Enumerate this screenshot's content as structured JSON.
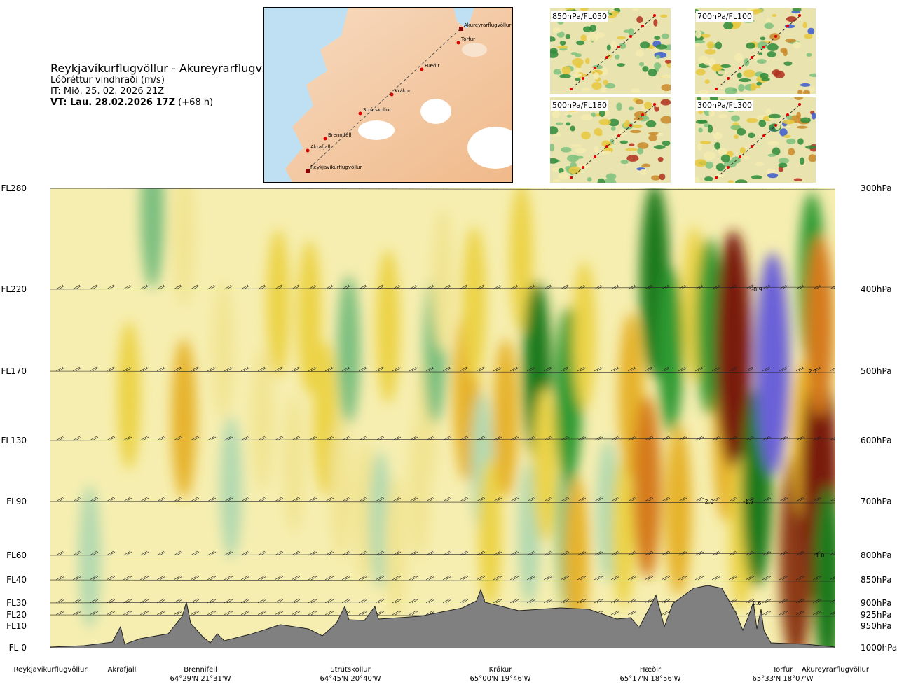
{
  "header": {
    "title": "Reykjavíkurflugvöllur - Akureyrarflugvöllur",
    "subtitle": "Lóðréttur vindhraði (m/s)",
    "it": "IT: Mið. 25. 02. 2026 21Z",
    "vt_bold": "VT: Lau. 28.02.2026 17Z",
    "vt_offset": " (+68 h)"
  },
  "route_map": {
    "points": [
      "Reykjavíkurflugvöllur",
      "Akrafjall",
      "Brennifell",
      "Strútskollur",
      "Krákur",
      "Hæðir",
      "Torfur",
      "Akureyrarflugvöllur"
    ]
  },
  "level_maps": [
    {
      "label": "850hPa/FL050"
    },
    {
      "label": "700hPa/FL100"
    },
    {
      "label": "500hPa/FL180"
    },
    {
      "label": "300hPa/FL300"
    }
  ],
  "axes": {
    "flight_levels": [
      "FL280",
      "FL220",
      "FL170",
      "FL130",
      "FL90",
      "FL60",
      "FL40",
      "FL30",
      "FL20",
      "FL10",
      "FL-0"
    ],
    "pressure_levels": [
      "300hPa",
      "400hPa",
      "500hPa",
      "600hPa",
      "700hPa",
      "800hPa",
      "850hPa",
      "900hPa",
      "925hPa",
      "950hPa",
      "1000hPa"
    ],
    "waypoints": [
      {
        "name": "Reykjavíkurflugvöllur",
        "coord": ""
      },
      {
        "name": "Akrafjall",
        "coord": ""
      },
      {
        "name": "Brennifell",
        "coord": "64°29'N 21°31'W"
      },
      {
        "name": "Strútskollur",
        "coord": "64°45'N 20°40'W"
      },
      {
        "name": "Krákur",
        "coord": "65°00'N 19°46'W"
      },
      {
        "name": "Hæðir",
        "coord": "65°17'N 18°56'W"
      },
      {
        "name": "Torfur",
        "coord": "65°33'N 18°07'W"
      },
      {
        "name": "Akureyrarflugvöllur",
        "coord": ""
      }
    ]
  },
  "chart_data": {
    "type": "heatmap",
    "title": "Reykjavíkurflugvöllur - Akureyrarflugvöllur",
    "subtitle": "Lóðréttur vindhraði (m/s)",
    "xlabel": "",
    "ylabel": "",
    "x_categories": [
      "Reykjavíkurflugvöllur",
      "Akrafjall",
      "Brennifell",
      "Strútskollur",
      "Krákur",
      "Hæðir",
      "Torfur",
      "Akureyrarflugvöllur"
    ],
    "y_levels_hPa": [
      1000,
      950,
      925,
      900,
      850,
      800,
      700,
      600,
      500,
      400,
      300
    ],
    "annotations": [
      {
        "label": "-0.9",
        "level_hPa": 400,
        "near": "Torfur"
      },
      {
        "label": "2.1",
        "level_hPa": 500,
        "near": "Akureyrarflugvöllur"
      },
      {
        "label": "2.0",
        "level_hPa": 700,
        "near": "Hæðir"
      },
      {
        "label": "-1.7",
        "level_hPa": 700,
        "near": "Torfur"
      },
      {
        "label": "1.0",
        "level_hPa": 800,
        "near": "Akureyrarflugvöllur"
      },
      {
        "label": "0.6",
        "level_hPa": 900,
        "near": "Torfur"
      }
    ],
    "cells": [
      {
        "at": [
          0.05,
          0.2
        ],
        "value": -0.3
      },
      {
        "at": [
          0.1,
          0.55
        ],
        "value": 0.4
      },
      {
        "at": [
          0.13,
          0.95
        ],
        "value": -0.5
      },
      {
        "at": [
          0.17,
          0.9
        ],
        "value": 0.3
      },
      {
        "at": [
          0.17,
          0.5
        ],
        "value": 0.6
      },
      {
        "at": [
          0.22,
          0.65
        ],
        "value": 0.2
      },
      {
        "at": [
          0.23,
          0.35
        ],
        "value": -0.3
      },
      {
        "at": [
          0.27,
          0.5
        ],
        "value": 0.3
      },
      {
        "at": [
          0.29,
          0.75
        ],
        "value": 0.4
      },
      {
        "at": [
          0.31,
          0.4
        ],
        "value": 0.2
      },
      {
        "at": [
          0.33,
          0.72
        ],
        "value": 0.5
      },
      {
        "at": [
          0.35,
          0.5
        ],
        "value": 0.5
      },
      {
        "at": [
          0.37,
          0.35
        ],
        "value": 0.3
      },
      {
        "at": [
          0.38,
          0.65
        ],
        "value": -0.4
      },
      {
        "at": [
          0.4,
          0.3
        ],
        "value": 0.3
      },
      {
        "at": [
          0.42,
          0.28
        ],
        "value": -0.2
      },
      {
        "at": [
          0.43,
          0.7
        ],
        "value": 0.5
      },
      {
        "at": [
          0.44,
          0.22
        ],
        "value": 0.3
      },
      {
        "at": [
          0.47,
          0.35
        ],
        "value": 0.3
      },
      {
        "at": [
          0.48,
          0.5
        ],
        "value": 0.2
      },
      {
        "at": [
          0.49,
          0.65
        ],
        "value": -0.4
      },
      {
        "at": [
          0.5,
          0.8
        ],
        "value": 0.3
      },
      {
        "at": [
          0.53,
          0.55
        ],
        "value": 0.8
      },
      {
        "at": [
          0.54,
          0.75
        ],
        "value": 0.5
      },
      {
        "at": [
          0.55,
          0.4
        ],
        "value": -0.3
      },
      {
        "at": [
          0.56,
          0.25
        ],
        "value": 0.4
      },
      {
        "at": [
          0.58,
          0.5
        ],
        "value": 0.6
      },
      {
        "at": [
          0.6,
          0.85
        ],
        "value": 0.4
      },
      {
        "at": [
          0.61,
          0.25
        ],
        "value": -0.3
      },
      {
        "at": [
          0.62,
          0.6
        ],
        "value": -1.0
      },
      {
        "at": [
          0.63,
          0.4
        ],
        "value": 0.5
      },
      {
        "at": [
          0.66,
          0.25
        ],
        "value": -0.6
      },
      {
        "at": [
          0.66,
          0.55
        ],
        "value": -0.9
      },
      {
        "at": [
          0.67,
          0.2
        ],
        "value": 0.6
      },
      {
        "at": [
          0.68,
          0.68
        ],
        "value": 0.4
      },
      {
        "at": [
          0.71,
          0.3
        ],
        "value": -0.3
      },
      {
        "at": [
          0.73,
          0.25
        ],
        "value": 0.4
      },
      {
        "at": [
          0.74,
          0.55
        ],
        "value": 0.7
      },
      {
        "at": [
          0.76,
          0.35
        ],
        "value": 1.0
      },
      {
        "at": [
          0.77,
          0.8
        ],
        "value": -1.2
      },
      {
        "at": [
          0.79,
          0.65
        ],
        "value": -0.7
      },
      {
        "at": [
          0.8,
          0.3
        ],
        "value": 0.8
      },
      {
        "at": [
          0.82,
          0.75
        ],
        "value": 0.5
      },
      {
        "at": [
          0.84,
          0.7
        ],
        "value": -0.9
      },
      {
        "at": [
          0.86,
          0.45
        ],
        "value": 0.6
      },
      {
        "at": [
          0.87,
          0.65
        ],
        "value": 2.0
      },
      {
        "at": [
          0.88,
          0.25
        ],
        "value": 0.5
      },
      {
        "at": [
          0.9,
          0.35
        ],
        "value": -1.3
      },
      {
        "at": [
          0.92,
          0.62
        ],
        "value": -1.7
      },
      {
        "at": [
          0.95,
          0.2
        ],
        "value": 1.6
      },
      {
        "at": [
          0.96,
          0.45
        ],
        "value": 0.6
      },
      {
        "at": [
          0.97,
          0.8
        ],
        "value": -0.9
      },
      {
        "at": [
          0.98,
          0.35
        ],
        "value": 2.1
      },
      {
        "at": [
          0.98,
          0.7
        ],
        "value": 1.0
      },
      {
        "at": [
          0.99,
          0.15
        ],
        "value": -1.1
      }
    ]
  }
}
